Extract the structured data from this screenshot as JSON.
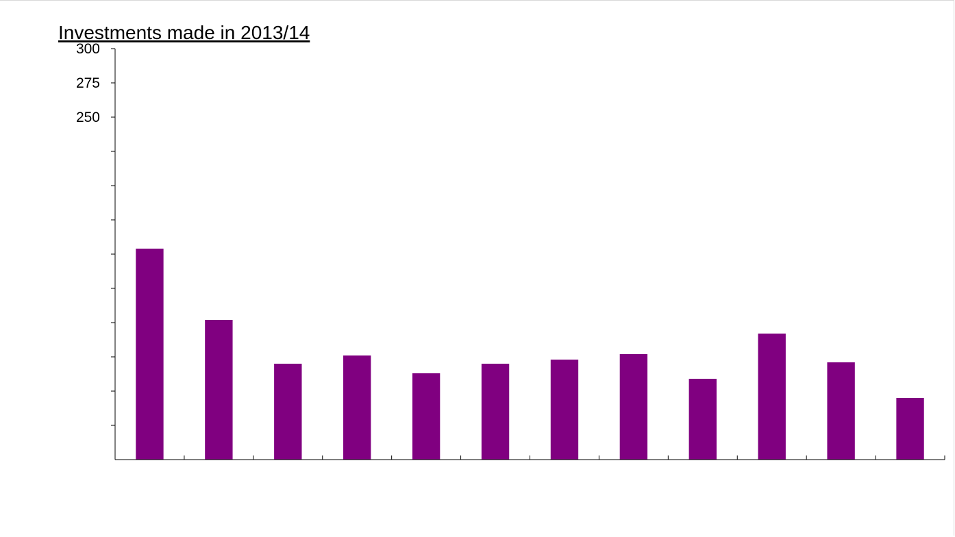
{
  "chart_data": {
    "type": "bar",
    "title": "Investments made in 2013/14",
    "xlabel": "",
    "ylabel": "",
    "categories": [
      "",
      "",
      "",
      "",
      "",
      "",
      "",
      "",
      "",
      "",
      "",
      ""
    ],
    "values": [
      154,
      102,
      70,
      76,
      63,
      70,
      73,
      77,
      59,
      92,
      71,
      45
    ],
    "ylim": [
      0,
      300
    ],
    "y_tick_step": 25,
    "y_tick_labels": [
      "300",
      "275",
      "250"
    ],
    "grid": false,
    "legend": "none",
    "bar_color": "#800080"
  }
}
